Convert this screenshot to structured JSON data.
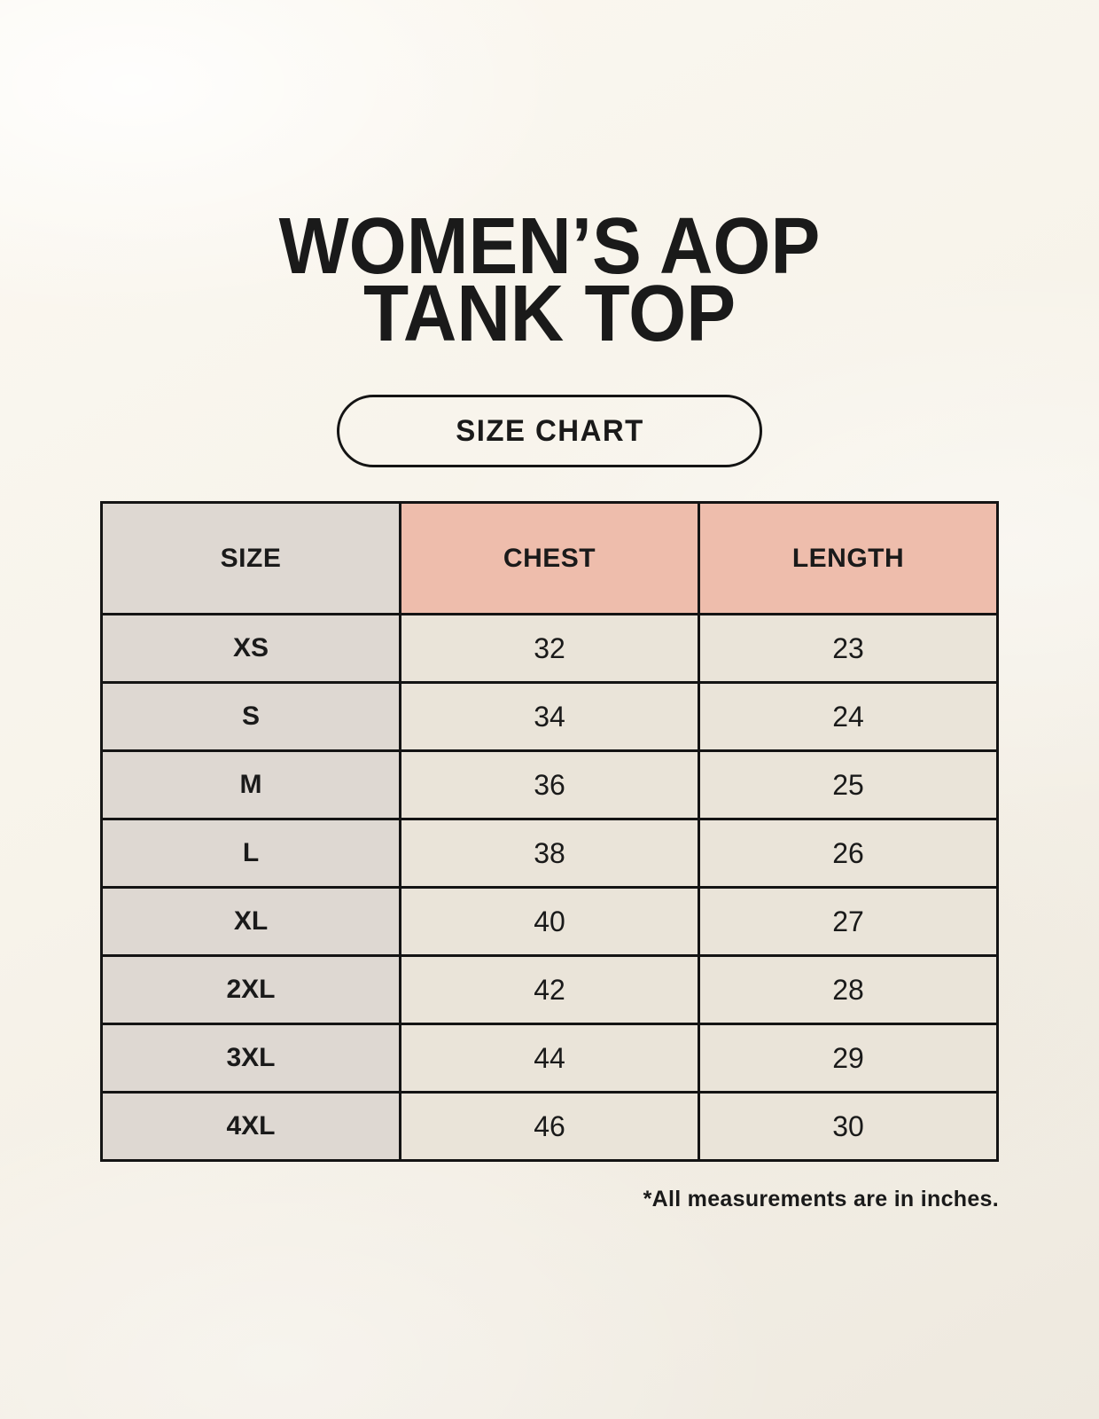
{
  "header": {
    "title_line1": "WOMEN’S AOP",
    "title_line2": "TANK TOP",
    "badge_label": "SIZE CHART"
  },
  "chart_data": {
    "type": "table",
    "title": "WOMEN’S AOP TANK TOP",
    "columns": [
      "SIZE",
      "CHEST",
      "LENGTH"
    ],
    "rows": [
      [
        "XS",
        32,
        23
      ],
      [
        "S",
        34,
        24
      ],
      [
        "M",
        36,
        25
      ],
      [
        "L",
        38,
        26
      ],
      [
        "XL",
        40,
        27
      ],
      [
        "2XL",
        42,
        28
      ],
      [
        "3XL",
        44,
        29
      ],
      [
        "4XL",
        46,
        30
      ]
    ],
    "units": "inches"
  },
  "footer": {
    "note": "*All measurements are in inches."
  },
  "colors": {
    "background_top": "#fbf8f1",
    "background_bottom": "#eee9df",
    "header_accent": "#eebdac",
    "size_col_bg": "#ded8d2",
    "cell_bg": "#eae4d9",
    "border": "#141414",
    "text": "#1a1a1a"
  }
}
